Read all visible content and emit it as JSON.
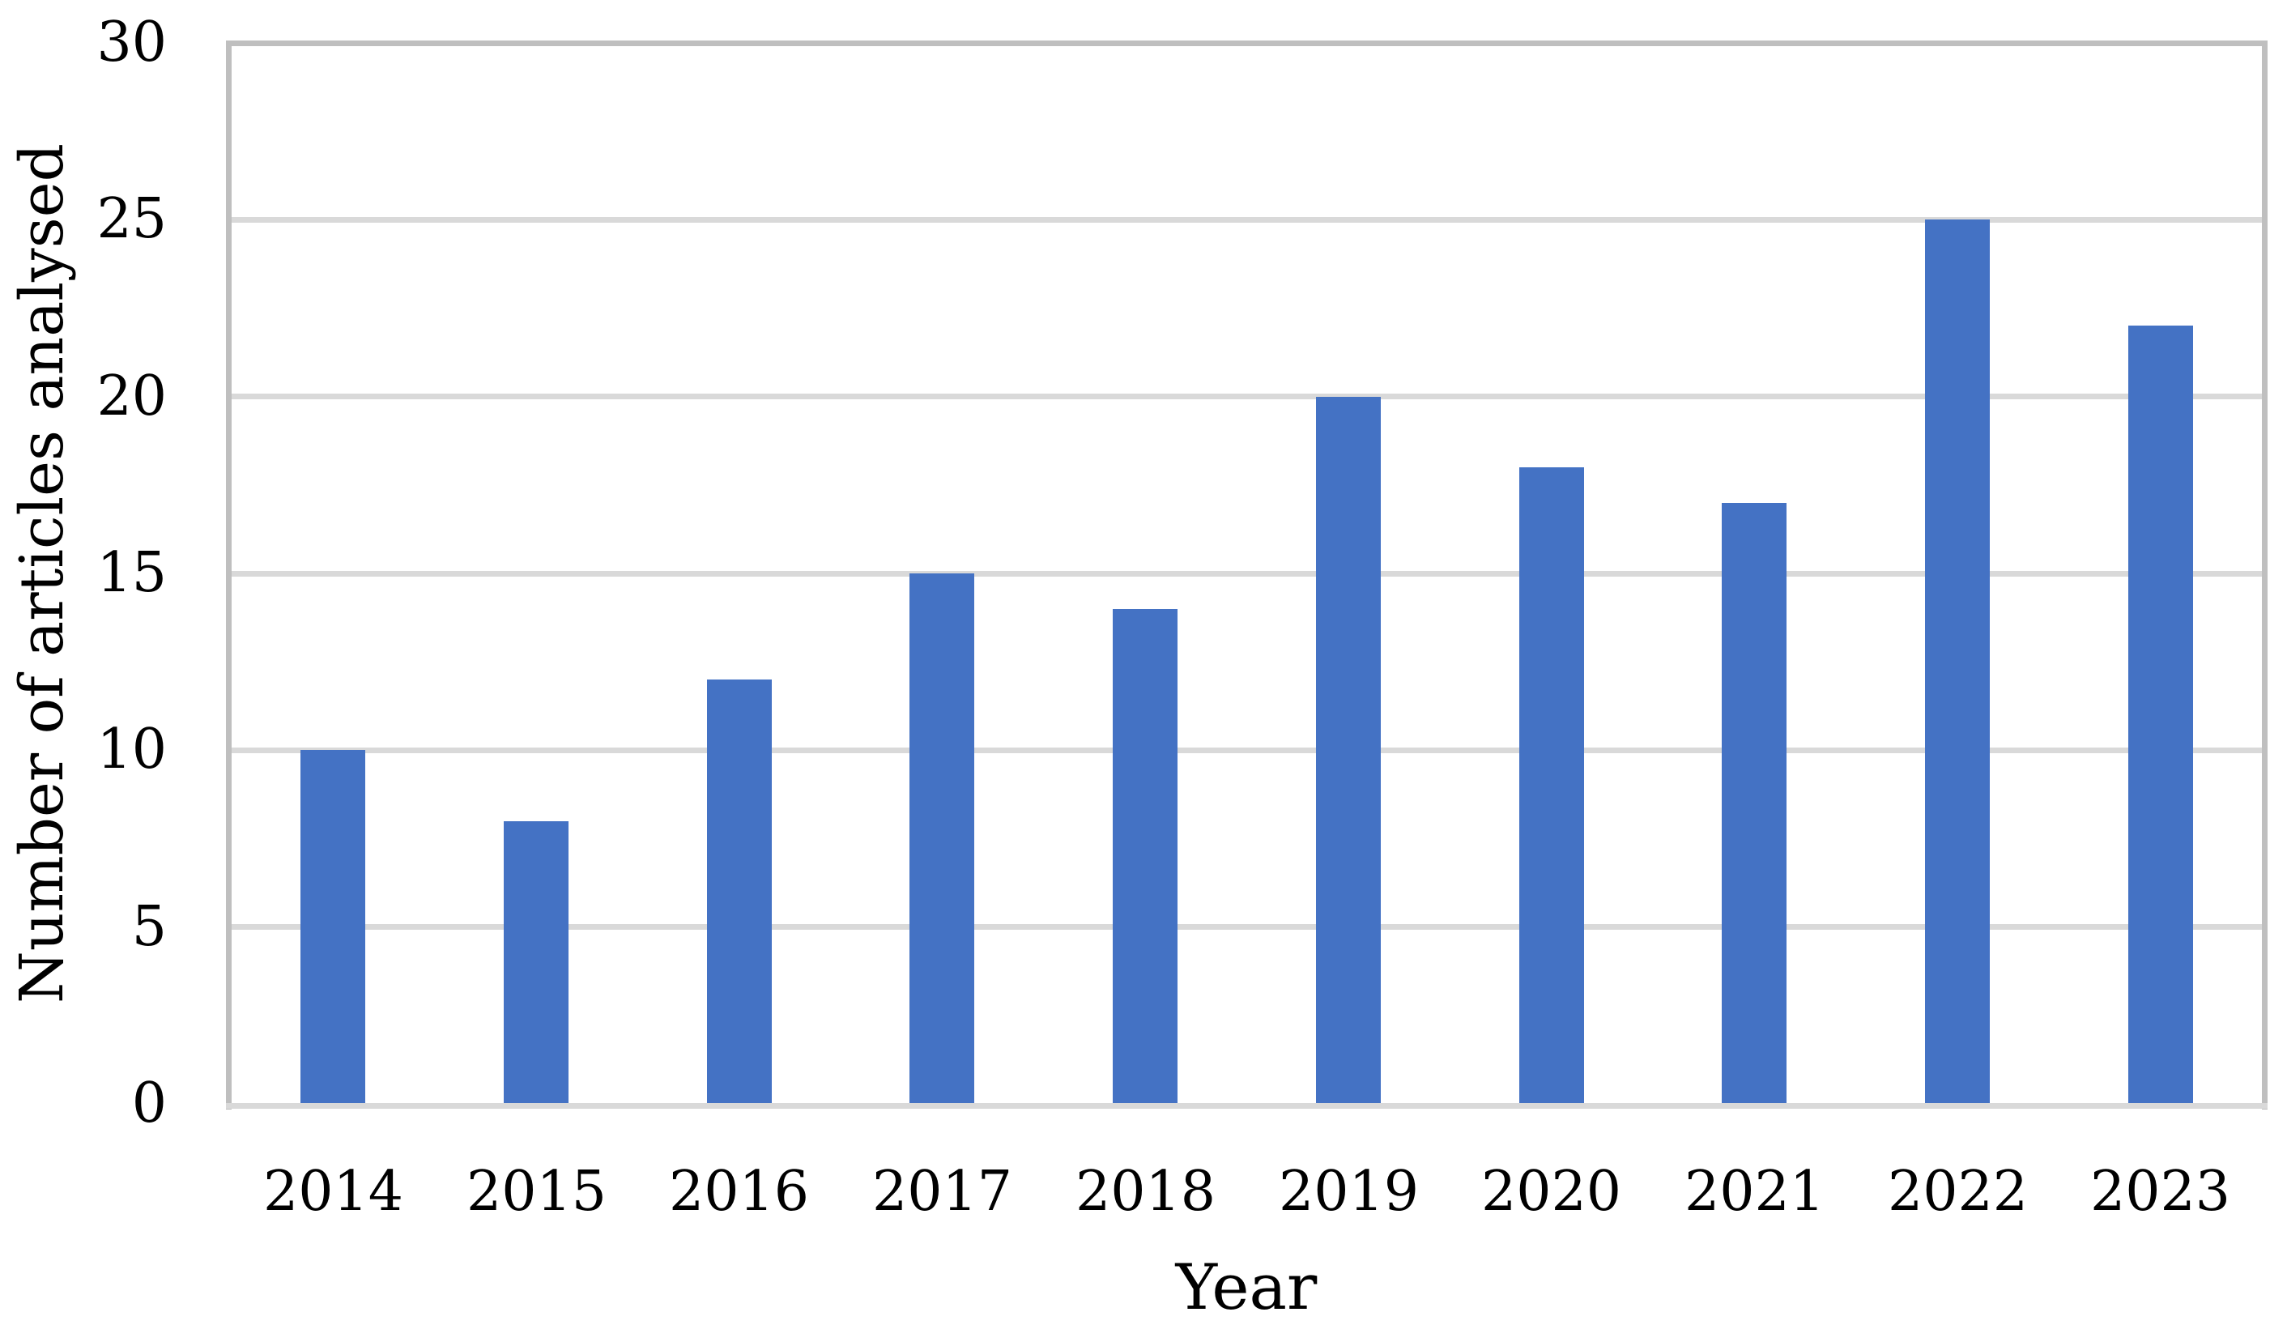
{
  "chart_data": {
    "type": "bar",
    "title": "",
    "xlabel": "Year",
    "ylabel": "Number of articles analysed",
    "categories": [
      "2014",
      "2015",
      "2016",
      "2017",
      "2018",
      "2019",
      "2020",
      "2021",
      "2022",
      "2023"
    ],
    "values": [
      10,
      8,
      12,
      15,
      14,
      20,
      18,
      17,
      25,
      22
    ],
    "ylim": [
      0,
      30
    ],
    "yticks": [
      0,
      5,
      10,
      15,
      20,
      25,
      30
    ],
    "grid": "horizontal",
    "legend": "none",
    "colors": {
      "bar": "#4472C4",
      "gridline": "#D9D9D9",
      "plot_border": "#BFBFBF",
      "bottom_axis": "#D9D9D9",
      "text": "#000000",
      "background": "#FFFFFF"
    }
  }
}
